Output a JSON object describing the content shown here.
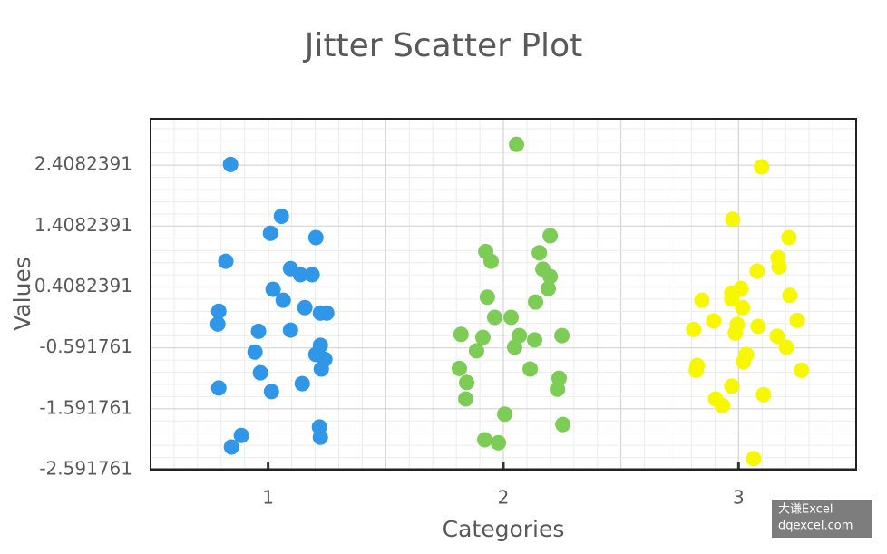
{
  "chart_data": {
    "type": "scatter",
    "title": "Jitter Scatter Plot",
    "x_label": "Categories",
    "y_label": "Values",
    "xlim": [
      0.5,
      3.5
    ],
    "xticks": [
      1,
      2,
      3
    ],
    "ylim": [
      -2.591761,
      3.17
    ],
    "yticks": [
      -2.591761,
      -1.591761,
      -0.591761,
      0.4082391,
      1.4082391,
      2.4082391
    ],
    "grid": true,
    "watermark": [
      "大谦Excel",
      "dqexcel.com"
    ],
    "series": [
      {
        "color": "#2f96e8",
        "x": [
          0.84,
          1.056,
          1.01,
          1.203,
          0.82,
          1.095,
          1.137,
          1.187,
          1.021,
          1.064,
          1.156,
          0.79,
          1.222,
          1.249,
          0.786,
          0.959,
          1.095,
          1.222,
          0.944,
          1.203,
          1.241,
          1.226,
          0.967,
          1.145,
          0.79,
          1.014,
          1.218,
          0.886,
          1.222,
          0.844
        ],
        "values": [
          2.42,
          1.57,
          1.29,
          1.22,
          0.83,
          0.71,
          0.61,
          0.61,
          0.37,
          0.19,
          0.07,
          0.01,
          -0.02,
          -0.02,
          -0.2,
          -0.32,
          -0.3,
          -0.55,
          -0.66,
          -0.7,
          -0.78,
          -0.94,
          -1.0,
          -1.18,
          -1.25,
          -1.31,
          -1.89,
          -2.03,
          -2.06,
          -2.22
        ]
      },
      {
        "color": "#7ccc55",
        "x": [
          2.056,
          2.199,
          1.925,
          2.153,
          1.948,
          2.168,
          2.199,
          2.191,
          1.932,
          2.137,
          1.963,
          2.033,
          1.82,
          1.913,
          2.068,
          2.249,
          2.133,
          2.048,
          1.886,
          1.813,
          2.114,
          2.237,
          1.844,
          2.23,
          1.84,
          2.006,
          2.253,
          1.921,
          1.979
        ],
        "values": [
          2.75,
          1.25,
          0.99,
          0.97,
          0.83,
          0.7,
          0.58,
          0.38,
          0.24,
          0.16,
          -0.09,
          -0.09,
          -0.37,
          -0.42,
          -0.39,
          -0.39,
          -0.46,
          -0.58,
          -0.64,
          -0.93,
          -0.94,
          -1.09,
          -1.16,
          -1.27,
          -1.43,
          -1.68,
          -1.85,
          -2.1,
          -2.15
        ]
      },
      {
        "color": "#f7f700",
        "x": [
          3.098,
          2.975,
          3.214,
          3.168,
          3.172,
          3.079,
          3.01,
          2.971,
          2.844,
          2.971,
          3.218,
          3.017,
          2.894,
          3.249,
          2.994,
          2.809,
          3.083,
          2.986,
          3.164,
          3.203,
          3.033,
          3.021,
          2.824,
          2.82,
          3.268,
          2.971,
          3.106,
          2.902,
          2.932,
          3.064
        ],
        "values": [
          2.38,
          1.52,
          1.22,
          0.89,
          0.74,
          0.67,
          0.38,
          0.31,
          0.19,
          0.21,
          0.27,
          0.07,
          -0.15,
          -0.14,
          -0.21,
          -0.29,
          -0.24,
          -0.35,
          -0.4,
          -0.58,
          -0.7,
          -0.82,
          -0.88,
          -0.96,
          -0.96,
          -1.22,
          -1.36,
          -1.43,
          -1.54,
          -2.41
        ]
      }
    ]
  }
}
